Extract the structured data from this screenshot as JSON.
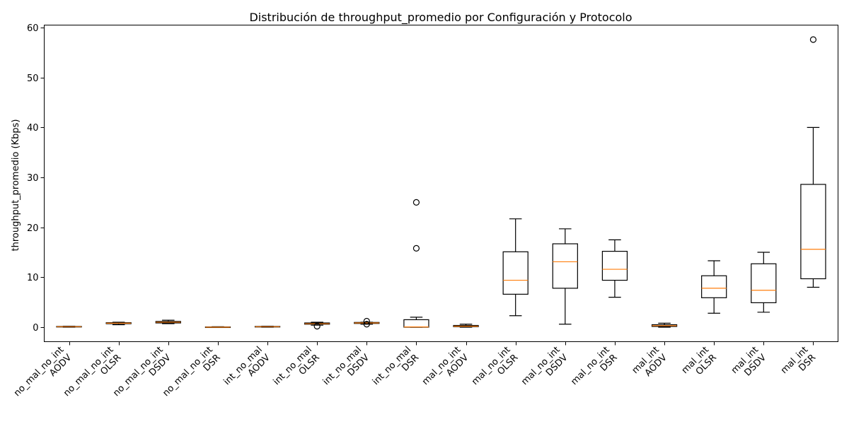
{
  "chart_data": {
    "type": "box",
    "title": "Distribución de throughput_promedio por Configuración y Protocolo",
    "xlabel": "",
    "ylabel": "throughput_promedio (Kbps)",
    "ylim": [
      -2.9,
      60.5
    ],
    "yticks": [
      0,
      10,
      20,
      30,
      40,
      50,
      60
    ],
    "grid": false,
    "legend": "none",
    "colors": {
      "box": "#000000",
      "median": "#ff7f0e",
      "outlier": "#000000"
    },
    "categories": [
      {
        "line1": "no_mal_no_int",
        "line2": "AODV"
      },
      {
        "line1": "no_mal_no_int",
        "line2": "OLSR"
      },
      {
        "line1": "no_mal_no_int",
        "line2": "DSDV"
      },
      {
        "line1": "no_mal_no_int",
        "line2": "DSR"
      },
      {
        "line1": "int_no_mal",
        "line2": "AODV"
      },
      {
        "line1": "int_no_mal",
        "line2": "OLSR"
      },
      {
        "line1": "int_no_mal",
        "line2": "DSDV"
      },
      {
        "line1": "int_no_mal",
        "line2": "DSR"
      },
      {
        "line1": "mal_no_int",
        "line2": "AODV"
      },
      {
        "line1": "mal_no_int",
        "line2": "OLSR"
      },
      {
        "line1": "mal_no_int",
        "line2": "DSDV"
      },
      {
        "line1": "mal_no_int",
        "line2": "DSR"
      },
      {
        "line1": "mal_int",
        "line2": "AODV"
      },
      {
        "line1": "mal_int",
        "line2": "OLSR"
      },
      {
        "line1": "mal_int",
        "line2": "DSDV"
      },
      {
        "line1": "mal_int",
        "line2": "DSR"
      }
    ],
    "boxes": [
      {
        "whislo": 0.0,
        "q1": 0.05,
        "med": 0.1,
        "q3": 0.15,
        "whishi": 0.2,
        "fliers": []
      },
      {
        "whislo": 0.5,
        "q1": 0.7,
        "med": 0.8,
        "q3": 0.9,
        "whishi": 1.0,
        "fliers": []
      },
      {
        "whislo": 0.7,
        "q1": 0.85,
        "med": 1.0,
        "q3": 1.15,
        "whishi": 1.4,
        "fliers": []
      },
      {
        "whislo": 0.0,
        "q1": 0.0,
        "med": 0.0,
        "q3": 0.05,
        "whishi": 0.1,
        "fliers": []
      },
      {
        "whislo": 0.0,
        "q1": 0.05,
        "med": 0.1,
        "q3": 0.15,
        "whishi": 0.2,
        "fliers": []
      },
      {
        "whislo": 0.4,
        "q1": 0.6,
        "med": 0.7,
        "q3": 0.85,
        "whishi": 1.0,
        "fliers": [
          0.2
        ]
      },
      {
        "whislo": 0.6,
        "q1": 0.75,
        "med": 0.85,
        "q3": 0.95,
        "whishi": 1.0,
        "fliers": [
          0.6,
          1.2
        ]
      },
      {
        "whislo": 0.0,
        "q1": 0.0,
        "med": 0.05,
        "q3": 1.5,
        "whishi": 2.0,
        "fliers": [
          15.8,
          25.0
        ]
      },
      {
        "whislo": 0.0,
        "q1": 0.1,
        "med": 0.2,
        "q3": 0.35,
        "whishi": 0.6,
        "fliers": []
      },
      {
        "whislo": 2.3,
        "q1": 6.6,
        "med": 9.4,
        "q3": 15.1,
        "whishi": 21.7,
        "fliers": []
      },
      {
        "whislo": 0.6,
        "q1": 7.8,
        "med": 13.1,
        "q3": 16.7,
        "whishi": 19.7,
        "fliers": []
      },
      {
        "whislo": 6.0,
        "q1": 9.4,
        "med": 11.6,
        "q3": 15.2,
        "whishi": 17.5,
        "fliers": []
      },
      {
        "whislo": 0.0,
        "q1": 0.15,
        "med": 0.3,
        "q3": 0.5,
        "whishi": 0.8,
        "fliers": []
      },
      {
        "whislo": 2.8,
        "q1": 5.9,
        "med": 7.8,
        "q3": 10.3,
        "whishi": 13.3,
        "fliers": []
      },
      {
        "whislo": 3.0,
        "q1": 4.9,
        "med": 7.4,
        "q3": 12.7,
        "whishi": 15.0,
        "fliers": []
      },
      {
        "whislo": 8.0,
        "q1": 9.7,
        "med": 15.6,
        "q3": 28.6,
        "whishi": 40.0,
        "fliers": [
          57.6
        ]
      }
    ]
  }
}
